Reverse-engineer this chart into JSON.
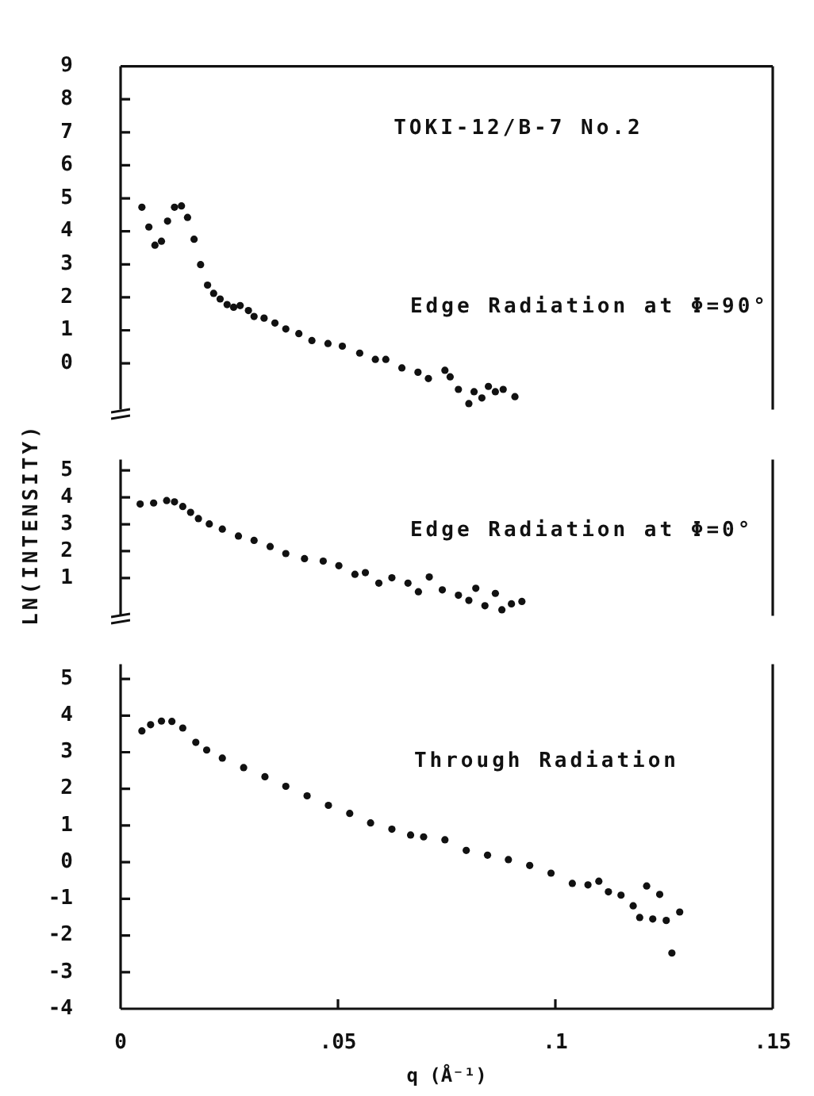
{
  "chart_data": [
    {
      "type": "scatter",
      "title": "TOKI-12/B-7 No.2",
      "xlim": [
        0,
        0.15
      ],
      "ylim": [
        -1.4,
        9
      ],
      "yticks": [
        0,
        1,
        2,
        3,
        4,
        5,
        6,
        7,
        8,
        9
      ],
      "tick_labels": "y",
      "marker": "circle",
      "x": [
        0.0049,
        0.0065,
        0.0079,
        0.0094,
        0.0108,
        0.0124,
        0.014,
        0.0154,
        0.0169,
        0.0184,
        0.02,
        0.0214,
        0.0229,
        0.0245,
        0.026,
        0.0275,
        0.0294,
        0.0307,
        0.033,
        0.0355,
        0.038,
        0.041,
        0.044,
        0.0477,
        0.051,
        0.055,
        0.0586,
        0.061,
        0.0647,
        0.0684,
        0.0708,
        0.0746,
        0.0758,
        0.0777,
        0.0801,
        0.0813,
        0.0831,
        0.0846,
        0.0862,
        0.088,
        0.0907
      ],
      "series": [
        {
          "name": "Edge Radiation at Φ=90°",
          "color": "#111111",
          "values": [
            4.73,
            4.13,
            3.58,
            3.7,
            4.31,
            4.73,
            4.77,
            4.42,
            3.76,
            2.99,
            2.37,
            2.12,
            1.95,
            1.78,
            1.7,
            1.75,
            1.6,
            1.42,
            1.37,
            1.22,
            1.04,
            0.9,
            0.69,
            0.6,
            0.52,
            0.31,
            0.12,
            0.12,
            -0.14,
            -0.27,
            -0.46,
            -0.21,
            -0.41,
            -0.79,
            -1.22,
            -0.86,
            -1.05,
            -0.7,
            -0.86,
            -0.79,
            -1.01
          ]
        }
      ]
    },
    {
      "type": "scatter",
      "ylabel": "LN(INTENSITY)",
      "xlim": [
        0,
        0.15
      ],
      "ylim": [
        -0.4,
        5.4
      ],
      "yticks": [
        1,
        2,
        3,
        4,
        5
      ],
      "tick_labels": "y",
      "marker": "circle",
      "x": [
        0.0045,
        0.0076,
        0.0106,
        0.0124,
        0.0143,
        0.0161,
        0.0179,
        0.0204,
        0.0234,
        0.0271,
        0.0307,
        0.0344,
        0.038,
        0.0423,
        0.0466,
        0.0502,
        0.0539,
        0.0563,
        0.0594,
        0.0624,
        0.0661,
        0.0685,
        0.071,
        0.074,
        0.0777,
        0.0801,
        0.0817,
        0.0838,
        0.0862,
        0.0877,
        0.0899,
        0.0923
      ],
      "series": [
        {
          "name": "Edge Radiation at Φ=0°",
          "color": "#111111",
          "values": [
            3.75,
            3.79,
            3.88,
            3.83,
            3.66,
            3.44,
            3.21,
            3.01,
            2.82,
            2.56,
            2.4,
            2.17,
            1.91,
            1.72,
            1.63,
            1.46,
            1.14,
            1.2,
            0.81,
            1.01,
            0.81,
            0.49,
            1.04,
            0.56,
            0.36,
            0.17,
            0.62,
            -0.03,
            0.43,
            -0.18,
            0.04,
            0.13
          ]
        }
      ]
    },
    {
      "type": "scatter",
      "xlabel": "q (Å⁻¹)",
      "xlim": [
        0,
        0.15
      ],
      "ylim": [
        -4,
        5.4
      ],
      "yticks": [
        -4,
        -3,
        -2,
        -1,
        0,
        1,
        2,
        3,
        4,
        5
      ],
      "xticks": [
        0,
        {
          "value": 0.05,
          "label": ".05"
        },
        {
          "value": 0.1,
          "label": ".1"
        },
        {
          "value": 0.15,
          "label": ".15"
        }
      ],
      "marker": "circle",
      "x": [
        0.0049,
        0.0069,
        0.0094,
        0.0118,
        0.0143,
        0.0173,
        0.0198,
        0.0234,
        0.0283,
        0.0332,
        0.038,
        0.0429,
        0.0478,
        0.0527,
        0.0575,
        0.0624,
        0.0667,
        0.0697,
        0.0746,
        0.0795,
        0.0844,
        0.0892,
        0.0941,
        0.099,
        0.1039,
        0.1075,
        0.11,
        0.1122,
        0.1151,
        0.1179,
        0.1194,
        0.121,
        0.1224,
        0.124,
        0.1255,
        0.1268,
        0.1286
      ],
      "series": [
        {
          "name": "Through Radiation",
          "color": "#111111",
          "values": [
            3.58,
            3.75,
            3.85,
            3.84,
            3.66,
            3.27,
            3.06,
            2.84,
            2.58,
            2.33,
            2.07,
            1.81,
            1.55,
            1.33,
            1.07,
            0.9,
            0.74,
            0.69,
            0.61,
            0.32,
            0.19,
            0.07,
            -0.09,
            -0.3,
            -0.58,
            -0.62,
            -0.52,
            -0.81,
            -0.9,
            -1.19,
            -1.51,
            -0.65,
            -1.55,
            -0.88,
            -1.59,
            -2.48,
            -1.36
          ]
        }
      ]
    }
  ]
}
